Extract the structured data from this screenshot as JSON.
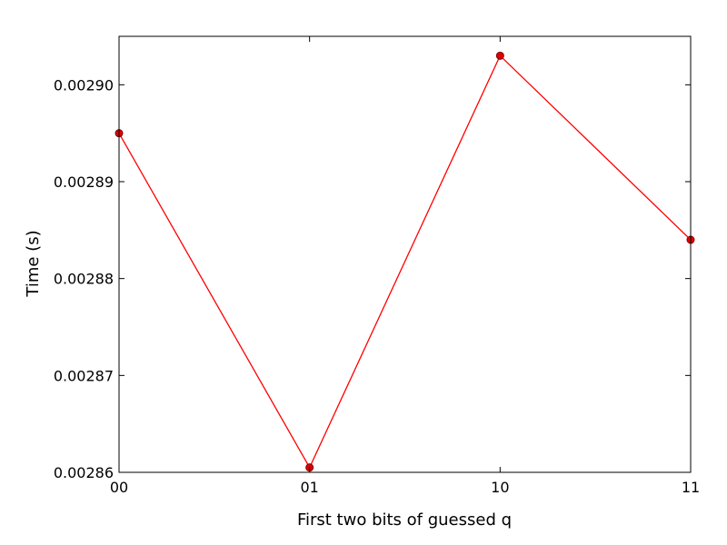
{
  "chart_data": {
    "type": "line",
    "title": "",
    "xlabel": "First two bits of guessed q",
    "ylabel": "Time (s)",
    "categories": [
      "00",
      "01",
      "10",
      "11"
    ],
    "series": [
      {
        "values": [
          0.002895,
          0.0028605,
          0.002903,
          0.002884
        ]
      }
    ],
    "ylim": [
      0.00286,
      0.002905
    ],
    "yticks": [
      {
        "value": 0.00286,
        "label": "0.00286"
      },
      {
        "value": 0.00287,
        "label": "0.00287"
      },
      {
        "value": 0.00288,
        "label": "0.00288"
      },
      {
        "value": 0.00289,
        "label": "0.00289"
      },
      {
        "value": 0.0029,
        "label": "0.00290"
      }
    ],
    "grid": false,
    "legend": "none",
    "line_color": "#ff0000",
    "marker_color": "#e00000",
    "marker_edge_color": "#800000"
  }
}
